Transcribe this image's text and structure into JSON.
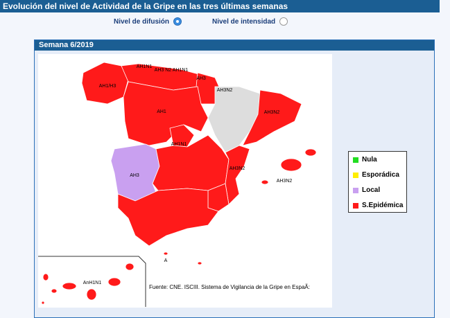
{
  "header": {
    "title": "Evolución del nivel de Actividad de la Gripe en las tres últimas semanas"
  },
  "options": [
    {
      "label": "Nivel de difusión",
      "selected": true
    },
    {
      "label": "Nivel de intensidad",
      "selected": false
    }
  ],
  "panel": {
    "title": "Semana 6/2019"
  },
  "map": {
    "labels": [
      "AH1N1",
      "AH3 N2 AH1N1",
      "AH3",
      "AH3N2",
      "AH1/H3",
      "AH1",
      "AH3N2",
      "AH1N1",
      "AH3N2",
      "AH3",
      "AH3N2",
      "A",
      "AnH1N1"
    ],
    "source": "Fuente: CNE. ISCIII. Sistema de Vigilancia de la Gripe en EspaÃ:"
  },
  "legend": [
    {
      "label": "Nula",
      "color": "#22dd22"
    },
    {
      "label": "Esporádica",
      "color": "#ffee00"
    },
    {
      "label": "Local",
      "color": "#c9a0f0"
    },
    {
      "label": "S.Epidémica",
      "color": "#ff1a1a"
    }
  ]
}
